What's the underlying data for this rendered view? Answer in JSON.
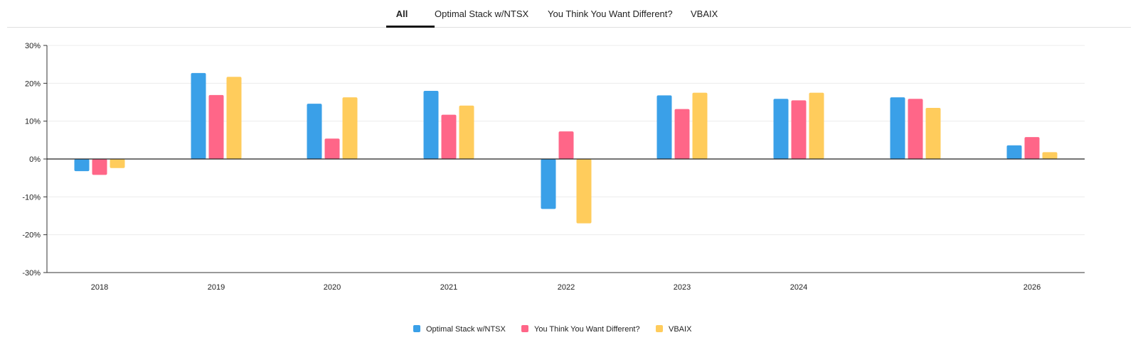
{
  "tabs": [
    {
      "label": "All",
      "active": true
    },
    {
      "label": "Optimal Stack w/NTSX",
      "active": false
    },
    {
      "label": "You Think You Want Different?",
      "active": false
    },
    {
      "label": "VBAIX",
      "active": false
    }
  ],
  "chart_data": {
    "type": "bar",
    "categories": [
      "2018",
      "2019",
      "2020",
      "2021",
      "2022",
      "2023",
      "2024",
      "",
      "2026"
    ],
    "series": [
      {
        "name": "Optimal Stack w/NTSX",
        "color": "#3aa0e8",
        "values": [
          -3.2,
          22.7,
          14.6,
          18.0,
          -13.2,
          16.8,
          15.9,
          16.3,
          3.6
        ]
      },
      {
        "name": "You Think You Want Different?",
        "color": "#ff6688",
        "values": [
          -4.2,
          16.9,
          5.4,
          11.7,
          7.3,
          13.2,
          15.5,
          15.9,
          5.8
        ]
      },
      {
        "name": "VBAIX",
        "color": "#ffcc5c",
        "values": [
          -2.4,
          21.7,
          16.3,
          14.1,
          -17.0,
          17.5,
          17.5,
          13.5,
          1.8
        ]
      }
    ],
    "ylim": [
      -30,
      30
    ],
    "yticks": [
      30,
      20,
      10,
      0,
      -10,
      -20,
      -30
    ],
    "ytick_labels": [
      "30%",
      "20%",
      "10%",
      "0%",
      "-10%",
      "-20%",
      "-30%"
    ],
    "grid": true,
    "legend_position": "bottom-center"
  }
}
